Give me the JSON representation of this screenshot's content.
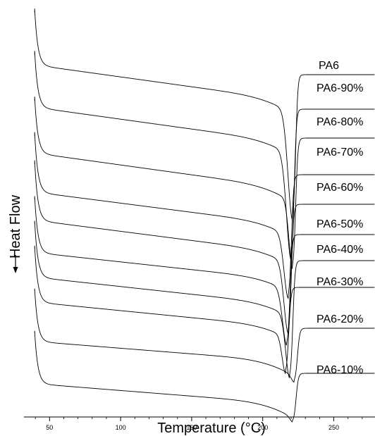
{
  "chart_data": {
    "type": "line",
    "title": "",
    "xlabel": "Temperature (°C)",
    "ylabel": "Heat Flow",
    "ylabel_arrow": "down",
    "xlim": [
      32,
      279
    ],
    "x_ticks": [
      50,
      100,
      150,
      200,
      250
    ],
    "y_ticks": [],
    "grid": false,
    "legend": "labels at right end of each curve",
    "series": [
      {
        "name": "PA6",
        "baseline": 0,
        "drop": 80,
        "slope": 0.28,
        "peak_x": 221,
        "peak_depth": 150,
        "peak_width": 3.2,
        "shoulder": 0,
        "recover": 105
      },
      {
        "name": "PA6-90%",
        "baseline": 60,
        "drop": 80,
        "slope": 0.28,
        "peak_x": 220,
        "peak_depth": 148,
        "peak_width": 3.2,
        "shoulder": 0,
        "recover": 137
      },
      {
        "name": "PA6-80%",
        "baseline": 125,
        "drop": 80,
        "slope": 0.28,
        "peak_x": 221,
        "peak_depth": 95,
        "peak_width": 2.5,
        "shoulder": 0,
        "recover": 178
      },
      {
        "name": "PA6-70%",
        "baseline": 175,
        "drop": 85,
        "slope": 0.26,
        "peak_x": 218,
        "peak_depth": 88,
        "peak_width": 3.0,
        "shoulder": 0,
        "recover": 230
      },
      {
        "name": "PA6-60%",
        "baseline": 215,
        "drop": 85,
        "slope": 0.26,
        "peak_x": 218,
        "peak_depth": 98,
        "peak_width": 3.0,
        "shoulder": 0,
        "recover": 272
      },
      {
        "name": "PA6-50%",
        "baseline": 265,
        "drop": 80,
        "slope": 0.22,
        "peak_x": 217,
        "peak_depth": 78,
        "peak_width": 3.0,
        "shoulder": 0,
        "recover": 315
      },
      {
        "name": "PA6-40%",
        "baseline": 300,
        "drop": 80,
        "slope": 0.22,
        "peak_x": 219,
        "peak_depth": 87,
        "peak_width": 2.8,
        "shoulder": 0,
        "recover": 352
      },
      {
        "name": "PA6-30%",
        "baseline": 335,
        "drop": 80,
        "slope": 0.2,
        "peak_x": 216,
        "peak_depth": 50,
        "peak_width": 2.4,
        "shoulder": 20,
        "recover": 390
      },
      {
        "name": "PA6-20%",
        "baseline": 395,
        "drop": 75,
        "slope": 0.16,
        "peak_x": 222,
        "peak_depth": 8,
        "peak_width": 2.0,
        "shoulder": 0,
        "recover": 448
      },
      {
        "name": "PA6-10%",
        "baseline": 455,
        "drop": 75,
        "slope": 0.16,
        "peak_x": 221,
        "peak_depth": 6,
        "peak_width": 2.0,
        "shoulder": 0,
        "recover": 512
      }
    ]
  }
}
